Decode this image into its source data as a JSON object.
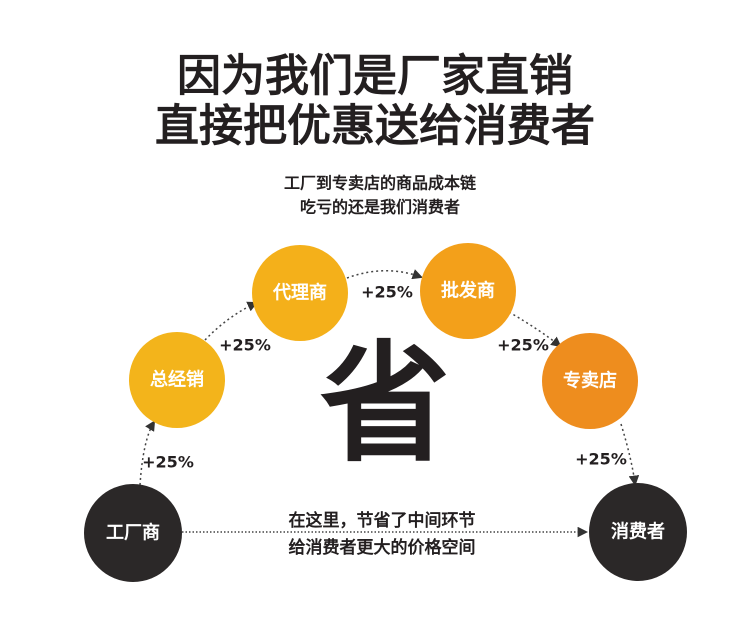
{
  "title": {
    "line1": "因为我们是厂家直销",
    "line2": "直接把优惠送给消费者"
  },
  "subtitle": {
    "line1": "工厂到专卖店的商品成本链",
    "line2": "吃亏的还是我们消费者"
  },
  "center_char": "省",
  "nodes": [
    {
      "label": "工厂商",
      "color": "#2b2828"
    },
    {
      "label": "总经销",
      "color": "#f3b41b"
    },
    {
      "label": "代理商",
      "color": "#f4b01a"
    },
    {
      "label": "批发商",
      "color": "#f3a01a"
    },
    {
      "label": "专卖店",
      "color": "#ee8d1e"
    },
    {
      "label": "消费者",
      "color": "#2b2828"
    }
  ],
  "markups": [
    "+25%",
    "+25%",
    "+25%",
    "+25%",
    "+25%"
  ],
  "bottom_text": {
    "line1": "在这里，节省了中间环节",
    "line2": "给消费者更大的价格空间"
  }
}
